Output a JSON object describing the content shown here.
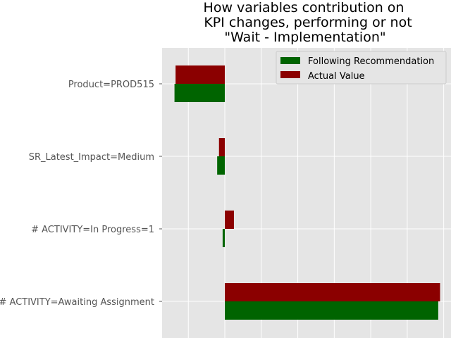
{
  "chart_data": {
    "type": "bar",
    "orientation": "horizontal",
    "title": "How variables contribution on KPI changes, performing or not \"Wait - Implementation\"",
    "title_lines": [
      "How variables contribution on",
      "KPI changes, performing or not",
      "\"Wait - Implementation\""
    ],
    "categories": [
      "Product=PROD515",
      "SR_Latest_Impact=Medium",
      "# ACTIVITY=In Progress=1",
      "# ACTIVITY=Awaiting Assignment"
    ],
    "series": [
      {
        "name": "Following Recommendation",
        "color": "#006400",
        "values": [
          -0.138,
          -0.021,
          -0.006,
          0.585
        ]
      },
      {
        "name": "Actual Value",
        "color": "#8b0000",
        "values": [
          -0.135,
          -0.016,
          0.025,
          0.59
        ]
      }
    ],
    "xlim": [
      -0.172,
      0.62
    ],
    "x_gridlines": [
      -0.1,
      0.0,
      0.1,
      0.2,
      0.3,
      0.4,
      0.5,
      0.6
    ],
    "grid": true,
    "legend_position": "top-right",
    "colors": {
      "plot_background": "#e5e5e5",
      "grid": "#ffffff"
    }
  }
}
